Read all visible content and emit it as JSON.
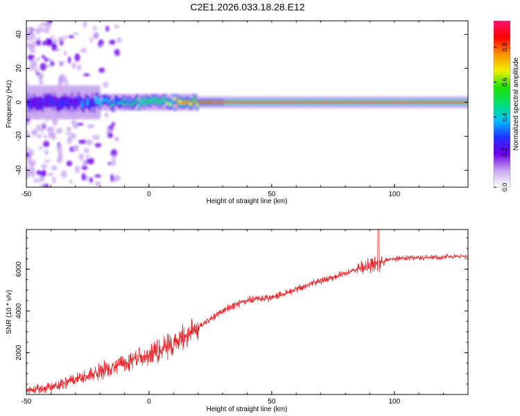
{
  "figure": {
    "title": "C2E1.2026.033.18.28.E12"
  },
  "chart_data": [
    {
      "type": "heatmap",
      "xlabel": "Height of straight line (km)",
      "ylabel": "Frequency (Hz)",
      "xlim": [
        -50,
        130
      ],
      "ylim": [
        -50,
        48
      ],
      "x_ticks": [
        -50,
        0,
        50,
        100
      ],
      "y_ticks": [
        -40,
        -20,
        0,
        20,
        40
      ],
      "colorbar": {
        "label": "Normalized spectral amplitude",
        "range": [
          0.0,
          0.95
        ],
        "ticks": [
          0.0,
          0.2,
          0.4,
          0.6,
          0.8
        ],
        "colors": [
          "#ffffff",
          "#c9a8ef",
          "#7000e8",
          "#2030ff",
          "#00c0ff",
          "#00e070",
          "#20e000",
          "#f0f000",
          "#ff9000",
          "#ff0000",
          "#ff1070"
        ]
      },
      "ridge_center_hz": 0,
      "ridge_profile": [
        {
          "x": -50,
          "amplitude": 0.25
        },
        {
          "x": -40,
          "amplitude": 0.25
        },
        {
          "x": -30,
          "amplitude": 0.3
        },
        {
          "x": -20,
          "amplitude": 0.4
        },
        {
          "x": -10,
          "amplitude": 0.5
        },
        {
          "x": 0,
          "amplitude": 0.6
        },
        {
          "x": 10,
          "amplitude": 0.7
        },
        {
          "x": 20,
          "amplitude": 0.85
        },
        {
          "x": 30,
          "amplitude": 0.95
        },
        {
          "x": 130,
          "amplitude": 0.95
        }
      ]
    },
    {
      "type": "line",
      "xlabel": "Height of straight line (km)",
      "ylabel": "SNR (10 * v/v)",
      "xlim": [
        -50,
        130
      ],
      "ylim": [
        0,
        7900
      ],
      "x_ticks": [
        -50,
        0,
        50,
        100
      ],
      "y_ticks": [
        2000,
        4000,
        6000
      ],
      "series": [
        {
          "color": "#e8262a",
          "x": [
            -50,
            -45,
            -40,
            -35,
            -30,
            -25,
            -20,
            -15,
            -10,
            -5,
            0,
            5,
            10,
            15,
            20,
            25,
            30,
            35,
            40,
            45,
            50,
            55,
            60,
            65,
            70,
            75,
            80,
            85,
            90,
            93,
            94,
            95,
            100,
            110,
            120,
            130
          ],
          "y": [
            200,
            250,
            350,
            500,
            700,
            900,
            1100,
            1300,
            1500,
            1700,
            1900,
            2150,
            2450,
            2800,
            3200,
            3600,
            4000,
            4300,
            4500,
            4600,
            4650,
            4800,
            5050,
            5250,
            5450,
            5600,
            5800,
            6000,
            6200,
            6300,
            6200,
            6400,
            6500,
            6550,
            6600,
            6620
          ]
        }
      ]
    }
  ]
}
